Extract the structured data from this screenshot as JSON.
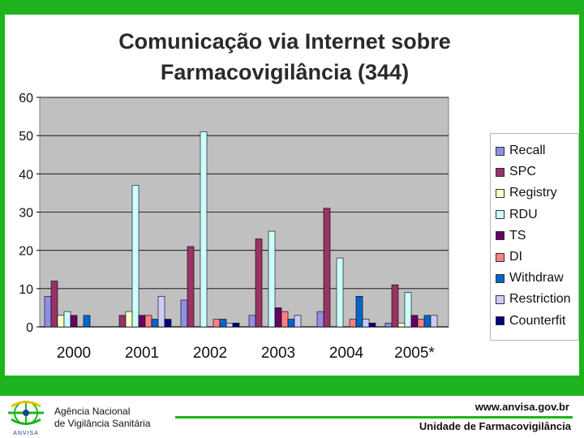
{
  "title_line1": "Comunicação via Internet sobre",
  "title_line2": "Farmacovigilância (344)",
  "footer": {
    "agency_line1": "Agência Nacional",
    "agency_line2": "de Vigilância Sanitária",
    "logo_text": "ANVISA",
    "url": "www.anvisa.gov.br",
    "unit": "Unidade de Farmacovigilância"
  },
  "colors": {
    "frame": "#1fb41f",
    "plot_bg": "#c0c0c0"
  },
  "chart_data": {
    "type": "bar",
    "title": "Comunicação via Internet sobre Farmacovigilância (344)",
    "categories": [
      "2000",
      "2001",
      "2002",
      "2003",
      "2004",
      "2005*"
    ],
    "ylim": [
      0,
      60
    ],
    "yticks": [
      0,
      10,
      20,
      30,
      40,
      50,
      60
    ],
    "grid": true,
    "legend_position": "right",
    "series": [
      {
        "name": "Recall",
        "color": "#8f8fe8",
        "values": [
          8,
          0,
          7,
          3,
          4,
          1
        ]
      },
      {
        "name": "SPC",
        "color": "#993366",
        "values": [
          12,
          3,
          21,
          23,
          31,
          11
        ]
      },
      {
        "name": "Registry",
        "color": "#ffffcc",
        "values": [
          3,
          4,
          0,
          0,
          0,
          1
        ]
      },
      {
        "name": "RDU",
        "color": "#ccffff",
        "values": [
          4,
          37,
          51,
          25,
          18,
          9
        ]
      },
      {
        "name": "TS",
        "color": "#660066",
        "values": [
          3,
          3,
          0,
          5,
          0,
          3
        ]
      },
      {
        "name": "DI",
        "color": "#ff8080",
        "values": [
          0,
          3,
          2,
          4,
          2,
          2
        ]
      },
      {
        "name": "Withdraw",
        "color": "#0066cc",
        "values": [
          3,
          2,
          2,
          2,
          8,
          3
        ]
      },
      {
        "name": "Restriction",
        "color": "#ccccff",
        "values": [
          0,
          8,
          1,
          3,
          2,
          3
        ]
      },
      {
        "name": "Counterfit",
        "color": "#000080",
        "values": [
          0,
          2,
          1,
          0,
          1,
          0
        ]
      }
    ]
  }
}
